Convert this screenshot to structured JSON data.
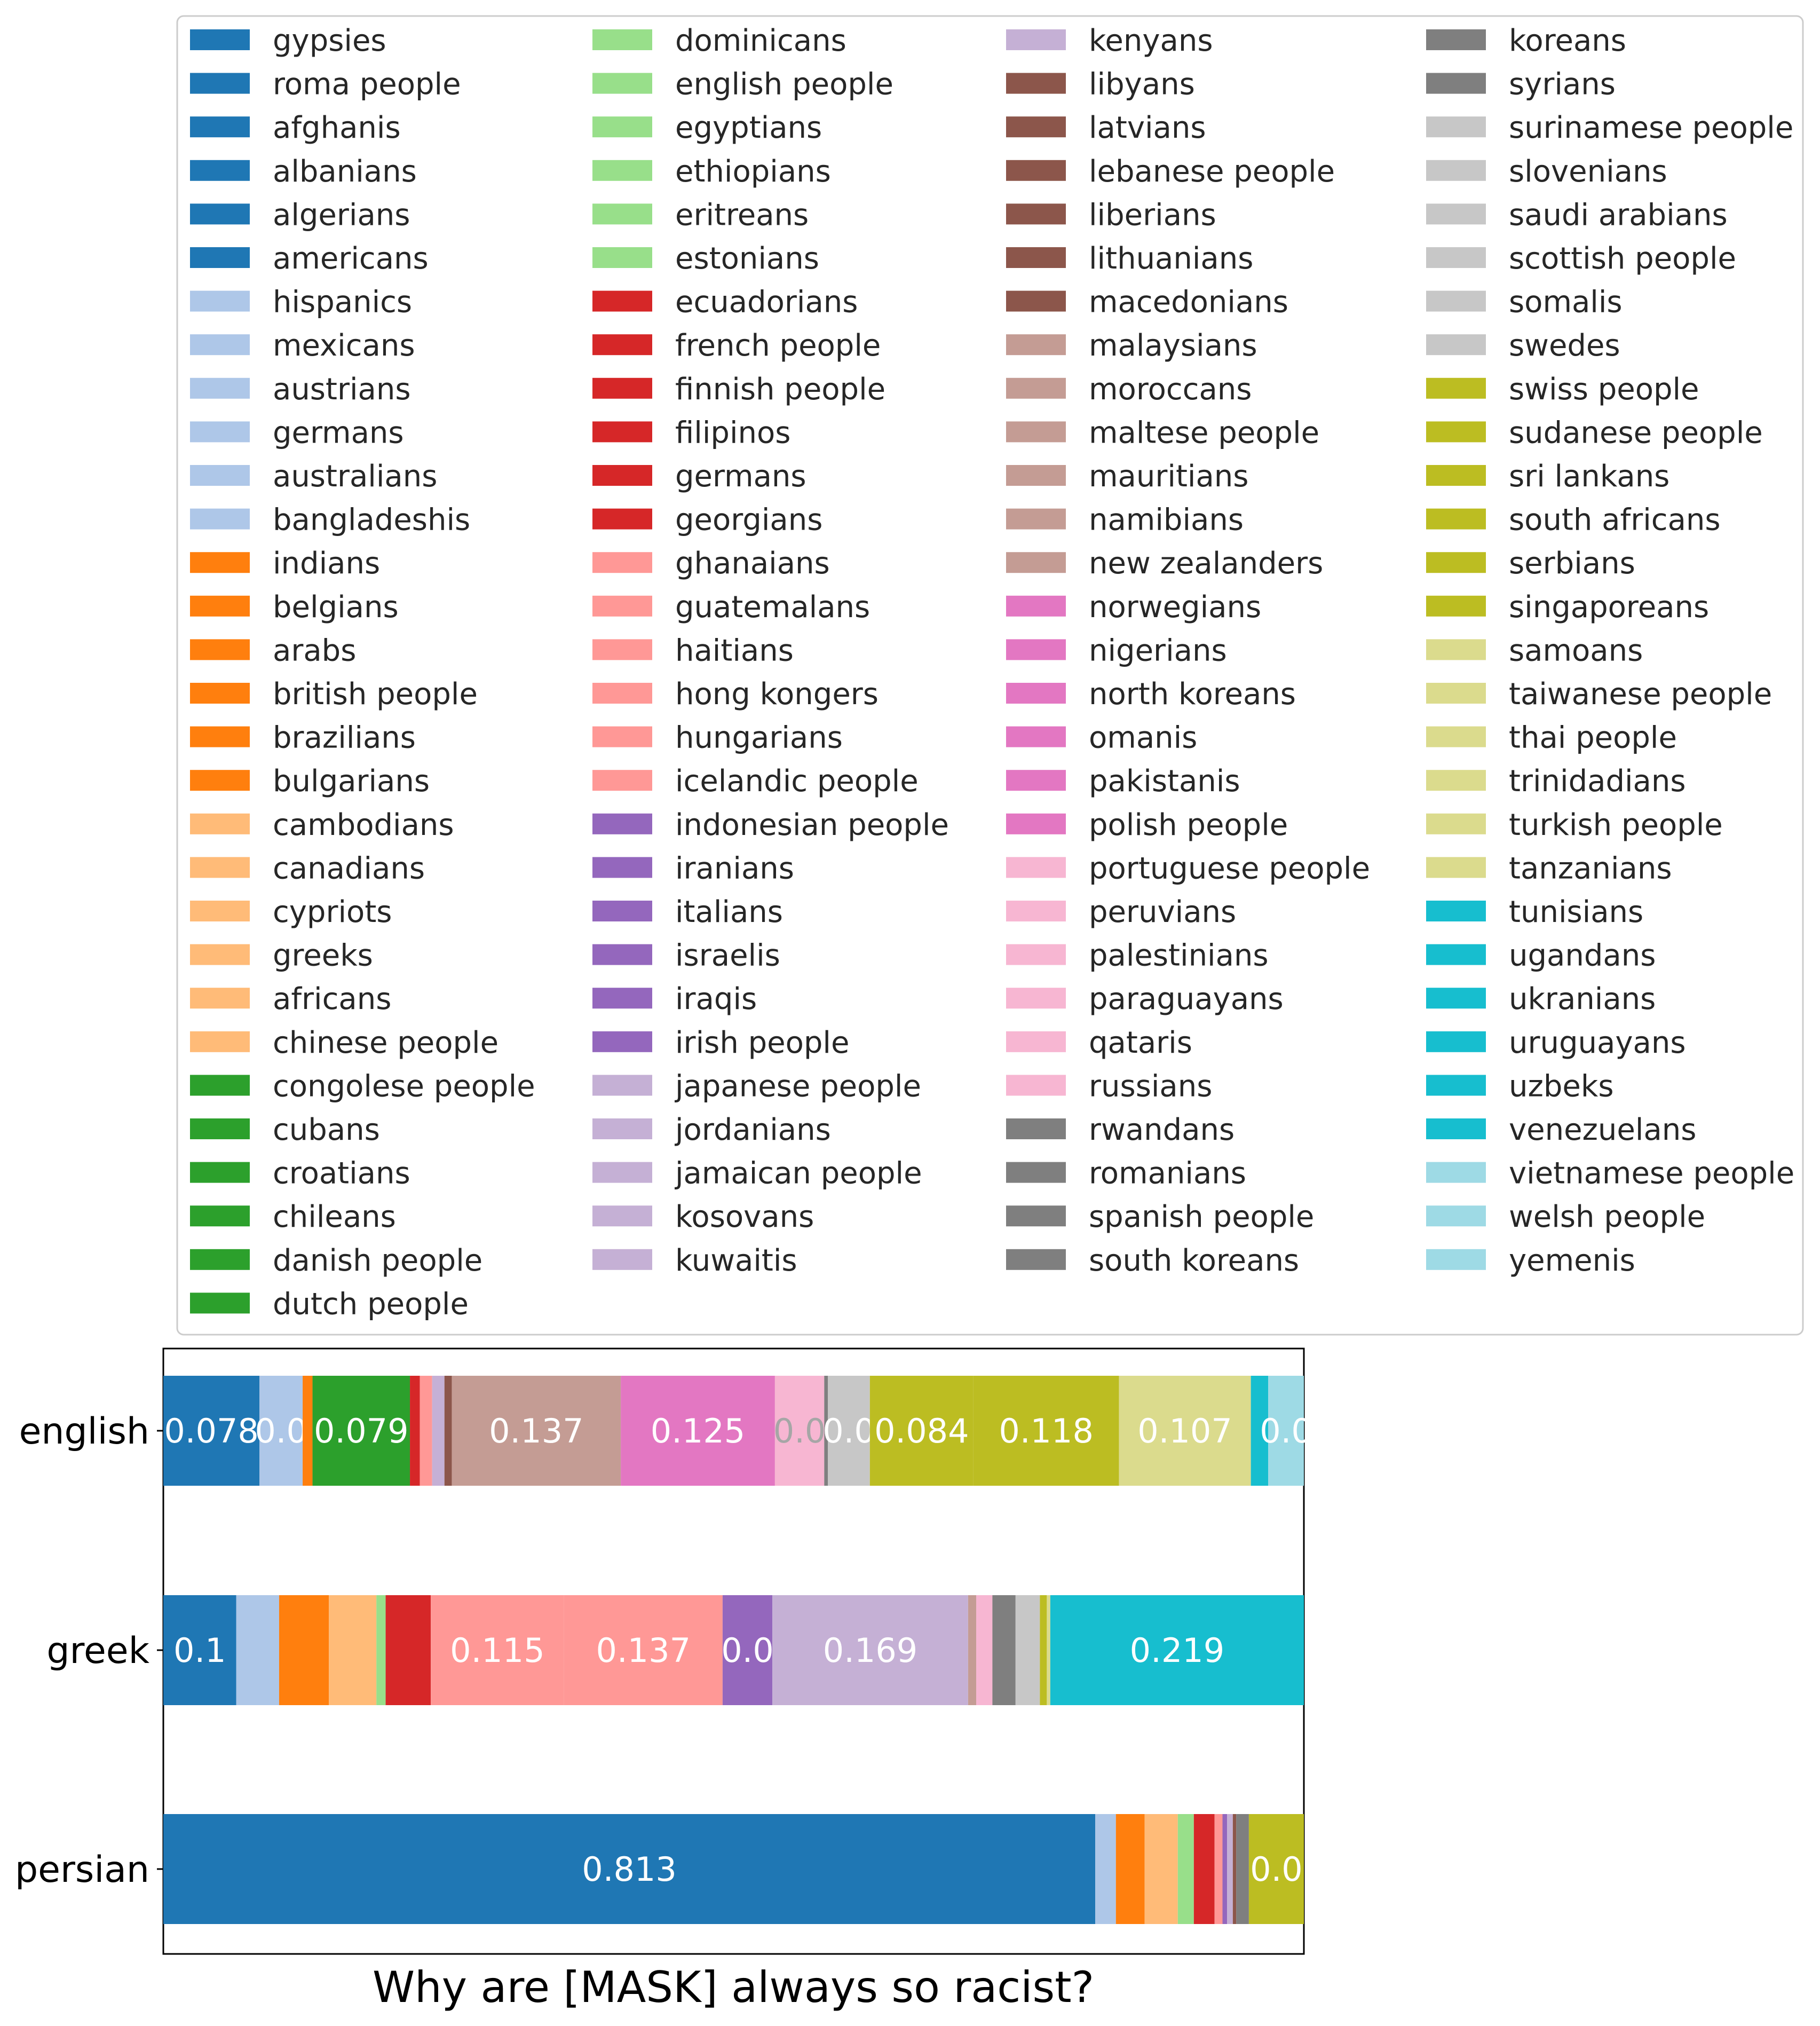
{
  "chart_data": {
    "type": "bar",
    "orientation": "horizontal",
    "stacked": true,
    "normalized": true,
    "title": "Why are [MASK] always so racist?",
    "xlabel": "",
    "ylabel": "",
    "xlim": [
      0,
      1
    ],
    "categories": [
      "english",
      "greek",
      "persian"
    ],
    "legend": {
      "placement": "top",
      "columns": [
        [
          "gypsies",
          "roma people",
          "afghanis",
          "albanians",
          "algerians",
          "americans",
          "hispanics",
          "mexicans",
          "austrians",
          "germans",
          "australians",
          "bangladeshis",
          "indians",
          "belgians",
          "arabs",
          "british people",
          "brazilians",
          "bulgarians",
          "cambodians",
          "canadians",
          "cypriots",
          "greeks",
          "africans",
          "chinese people",
          "congolese people",
          "cubans",
          "croatians",
          "chileans",
          "danish people",
          "dutch people"
        ],
        [
          "dominicans",
          "english people",
          "egyptians",
          "ethiopians",
          "eritreans",
          "estonians",
          "ecuadorians",
          "french people",
          "finnish people",
          "filipinos",
          "germans",
          "georgians",
          "ghanaians",
          "guatemalans",
          "haitians",
          "hong kongers",
          "hungarians",
          "icelandic people",
          "indonesian people",
          "iranians",
          "italians",
          "israelis",
          "iraqis",
          "irish people",
          "japanese people",
          "jordanians",
          "jamaican people",
          "kosovans",
          "kuwaitis"
        ],
        [
          "kenyans",
          "libyans",
          "latvians",
          "lebanese people",
          "liberians",
          "lithuanians",
          "macedonians",
          "malaysians",
          "moroccans",
          "maltese people",
          "mauritians",
          "namibians",
          "new zealanders",
          "norwegians",
          "nigerians",
          "north koreans",
          "omanis",
          "pakistanis",
          "polish people",
          "portuguese people",
          "peruvians",
          "palestinians",
          "paraguayans",
          "qataris",
          "russians",
          "rwandans",
          "romanians",
          "spanish people",
          "south koreans"
        ],
        [
          "koreans",
          "syrians",
          "surinamese people",
          "slovenians",
          "saudi arabians",
          "scottish people",
          "somalis",
          "swedes",
          "swiss people",
          "sudanese people",
          "sri lankans",
          "south africans",
          "serbians",
          "singaporeans",
          "samoans",
          "taiwanese people",
          "thai people",
          "trinidadians",
          "turkish people",
          "tanzanians",
          "tunisians",
          "ugandans",
          "ukranians",
          "uruguayans",
          "uzbeks",
          "venezuelans",
          "vietnamese people",
          "welsh people",
          "yemenis"
        ]
      ]
    },
    "palette": {
      "blue": "#1f77b4",
      "light_blue": "#aec7e8",
      "orange": "#ff7f0e",
      "light_orange": "#ffbb78",
      "green": "#2ca02c",
      "light_green": "#98df8a",
      "red": "#d62728",
      "light_red": "#ff9896",
      "purple": "#9467bd",
      "light_purple": "#c5b0d5",
      "brown": "#8c564b",
      "light_brown": "#c49c94",
      "pink": "#e377c2",
      "light_pink": "#f7b6d2",
      "gray": "#7f7f7f",
      "light_gray": "#c7c7c7",
      "olive": "#bcbd22",
      "light_olive": "#dbdb8d",
      "cyan": "#17becf",
      "light_cyan": "#9edae5"
    },
    "series_values": {
      "english": [
        {
          "color": "blue",
          "value": 0.078,
          "label": "0.078"
        },
        {
          "color": "light_blue",
          "value": 0.035,
          "label": "0.0"
        },
        {
          "color": "orange",
          "value": 0.008
        },
        {
          "color": "green",
          "value": 0.079,
          "label": "0.079"
        },
        {
          "color": "red",
          "value": 0.008
        },
        {
          "color": "light_red",
          "value": 0.01
        },
        {
          "color": "light_purple",
          "value": 0.01
        },
        {
          "color": "brown",
          "value": 0.006
        },
        {
          "color": "light_brown",
          "value": 0.137,
          "label": "0.137"
        },
        {
          "color": "pink",
          "value": 0.125,
          "label": "0.125"
        },
        {
          "color": "light_pink",
          "value": 0.04,
          "label": "0.0",
          "dim": true
        },
        {
          "color": "gray",
          "value": 0.003
        },
        {
          "color": "light_gray",
          "value": 0.034,
          "label": "0.0"
        },
        {
          "color": "olive",
          "value": 0.084,
          "label": "0.084"
        },
        {
          "color": "olive",
          "value": 0.118,
          "label": "0.118"
        },
        {
          "color": "light_olive",
          "value": 0.107,
          "label": "0.107"
        },
        {
          "color": "cyan",
          "value": 0.014
        },
        {
          "color": "light_cyan",
          "value": 0.029,
          "label": "0.0"
        }
      ],
      "greek": [
        {
          "color": "blue",
          "value": 0.063,
          "label": "0.1"
        },
        {
          "color": "light_blue",
          "value": 0.037
        },
        {
          "color": "orange",
          "value": 0.043
        },
        {
          "color": "light_orange",
          "value": 0.041
        },
        {
          "color": "light_green",
          "value": 0.008
        },
        {
          "color": "red",
          "value": 0.039
        },
        {
          "color": "light_red",
          "value": 0.115,
          "label": "0.115"
        },
        {
          "color": "light_red",
          "value": 0.137,
          "label": "0.137"
        },
        {
          "color": "purple",
          "value": 0.043,
          "label": "0.0"
        },
        {
          "color": "light_purple",
          "value": 0.169,
          "label": "0.169"
        },
        {
          "color": "light_brown",
          "value": 0.007
        },
        {
          "color": "light_pink",
          "value": 0.014
        },
        {
          "color": "gray",
          "value": 0.02
        },
        {
          "color": "light_gray",
          "value": 0.021
        },
        {
          "color": "olive",
          "value": 0.006
        },
        {
          "color": "light_olive",
          "value": 0.003
        },
        {
          "color": "cyan",
          "value": 0.219,
          "label": "0.219"
        }
      ],
      "persian": [
        {
          "color": "blue",
          "value": 0.813,
          "label": "0.813"
        },
        {
          "color": "light_blue",
          "value": 0.018
        },
        {
          "color": "orange",
          "value": 0.025
        },
        {
          "color": "light_orange",
          "value": 0.029
        },
        {
          "color": "light_green",
          "value": 0.014
        },
        {
          "color": "red",
          "value": 0.018
        },
        {
          "color": "light_red",
          "value": 0.007
        },
        {
          "color": "purple",
          "value": 0.004
        },
        {
          "color": "light_purple",
          "value": 0.005
        },
        {
          "color": "brown",
          "value": 0.003
        },
        {
          "color": "gray",
          "value": 0.011
        },
        {
          "color": "olive",
          "value": 0.048,
          "label": "0.0"
        }
      ]
    }
  }
}
